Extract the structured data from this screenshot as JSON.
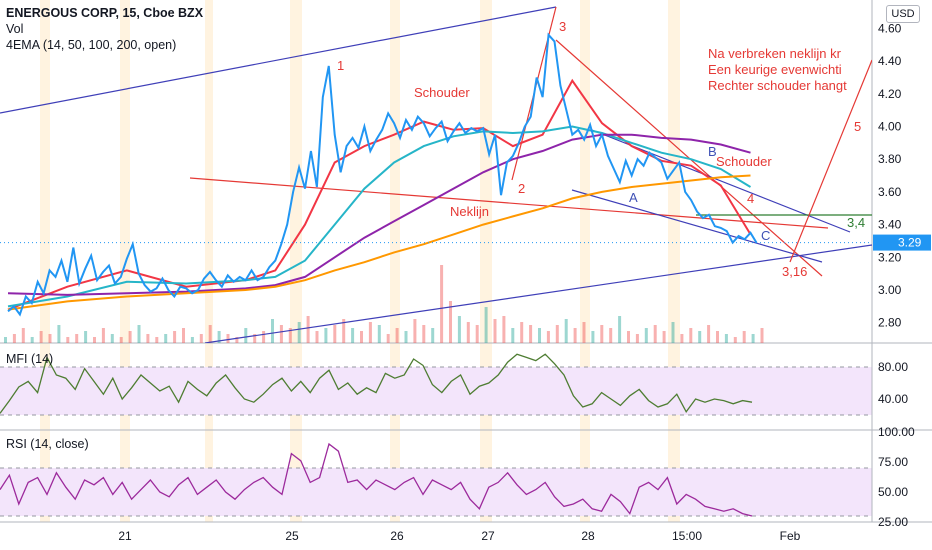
{
  "header": {
    "symbol_line": "ENERGOUS CORP, 15, Cboe BZX",
    "vol_label": "Vol",
    "ema_label": "4EMA (14, 50, 100, 200, open)",
    "currency_button": "USD"
  },
  "colors": {
    "price": "#2196f3",
    "ema14": "#f23645",
    "ema50": "#26b5c8",
    "ema100": "#8e24aa",
    "ema200": "#ff9800",
    "trendline_blue": "#3f3fb8",
    "annotation_red": "#e53935",
    "annotation_blue": "#3f51b5",
    "mfi_line": "#4e7d32",
    "rsi_line": "#9c2a9c",
    "band_fill": "#f3e5fb",
    "vol_up": "#26a69a",
    "vol_down": "#ef5350",
    "session_shade": "#fff3e0"
  },
  "annotations": {
    "labels": [
      "1",
      "2",
      "3",
      "4",
      "5",
      "A",
      "B",
      "C",
      "Schouder",
      "Schouder",
      "Neklijn",
      "3,4",
      "3,16"
    ],
    "note_lines": [
      "Na verbreken neklijn kr",
      "Een keurige evenwichti",
      "Rechter schouder hangt"
    ]
  },
  "chart_data": [
    {
      "type": "line",
      "panel": "price",
      "title": "ENERGOUS CORP, 15, Cboe BZX",
      "x_ticks": [
        "21",
        "25",
        "26",
        "27",
        "28",
        "15:00",
        "Feb"
      ],
      "y_ticks": [
        "2.80",
        "3.00",
        "3.20",
        "3.40",
        "3.60",
        "3.80",
        "4.00",
        "4.20",
        "4.40",
        "4.60"
      ],
      "ylim": [
        2.66,
        4.68
      ],
      "last_price_label": "3.29",
      "last_price": 3.29,
      "series": [
        {
          "name": "price",
          "x": [
            0,
            6,
            12,
            18,
            24,
            30,
            36,
            42,
            48,
            54,
            60,
            66,
            72,
            78,
            84,
            90,
            96,
            102,
            108,
            114,
            120,
            126,
            132,
            138,
            144,
            150,
            156,
            162,
            168,
            174,
            180,
            186,
            192,
            198,
            204,
            210,
            216,
            222,
            228,
            234,
            240,
            246,
            252,
            258,
            264,
            270,
            276,
            282,
            288,
            294,
            300,
            306,
            312,
            318,
            324,
            330,
            336,
            342,
            348,
            354,
            360,
            366,
            372,
            378,
            384,
            390,
            396,
            402,
            408,
            414,
            420,
            426,
            432,
            438,
            444,
            450,
            456,
            462,
            468,
            474,
            480,
            486,
            492,
            498,
            504,
            510,
            516,
            522,
            528,
            534,
            540,
            546,
            552,
            558,
            564,
            570,
            576,
            582,
            588,
            594,
            600,
            606,
            612,
            618,
            624,
            630,
            636,
            642,
            648,
            654,
            660,
            666,
            672,
            678,
            684,
            690,
            696,
            702,
            708,
            714,
            720,
            726,
            732,
            738,
            744,
            750,
            756
          ],
          "y": [
            2.87,
            2.9,
            2.85,
            2.96,
            2.92,
            3.05,
            2.98,
            3.12,
            3.08,
            3.18,
            3.05,
            3.26,
            3.04,
            3.13,
            3.21,
            3.06,
            3.11,
            3.15,
            3.04,
            3.08,
            3.19,
            3.28,
            3.1,
            3.03,
            2.99,
            3.01,
            3.07,
            3.0,
            2.96,
            3.02,
            3.01,
            2.98,
            3.0,
            3.07,
            3.11,
            3.06,
            3.02,
            3.09,
            3.05,
            3.08,
            3.06,
            3.12,
            3.06,
            3.08,
            3.14,
            3.18,
            3.28,
            3.4,
            3.6,
            3.75,
            3.62,
            3.85,
            3.63,
            4.18,
            4.37,
            3.95,
            3.72,
            3.88,
            3.93,
            3.87,
            4.0,
            3.85,
            3.92,
            3.98,
            4.08,
            4.02,
            3.93,
            4.04,
            3.98,
            4.06,
            4.02,
            3.94,
            3.99,
            4.03,
            3.91,
            3.97,
            4.02,
            3.96,
            3.99,
            3.97,
            3.99,
            3.83,
            3.95,
            3.58,
            3.78,
            3.82,
            3.9,
            4.0,
            4.06,
            4.3,
            4.18,
            4.56,
            4.52,
            4.25,
            4.1,
            3.95,
            3.98,
            3.92,
            4.01,
            3.88,
            3.95,
            3.82,
            3.74,
            3.66,
            3.79,
            3.7,
            3.8,
            3.76,
            3.84,
            3.81,
            3.78,
            3.68,
            3.73,
            3.78,
            3.6,
            3.55,
            3.48,
            3.44,
            3.46,
            3.39,
            3.38,
            3.36,
            3.29,
            3.33,
            3.31,
            3.35,
            3.29
          ]
        },
        {
          "name": "EMA 14",
          "x": [
            0,
            60,
            120,
            180,
            240,
            270,
            300,
            330,
            360,
            390,
            420,
            450,
            480,
            510,
            540,
            570,
            600,
            630,
            660,
            690,
            720,
            750
          ],
          "y": [
            2.88,
            3.02,
            3.12,
            3.02,
            3.06,
            3.12,
            3.4,
            3.78,
            3.88,
            3.95,
            4.03,
            3.98,
            3.99,
            3.88,
            3.95,
            4.28,
            4.02,
            3.88,
            3.79,
            3.76,
            3.64,
            3.34
          ]
        },
        {
          "name": "EMA 50",
          "x": [
            0,
            60,
            120,
            180,
            240,
            270,
            300,
            330,
            360,
            390,
            420,
            450,
            480,
            510,
            540,
            570,
            600,
            630,
            660,
            690,
            720,
            750
          ],
          "y": [
            2.9,
            2.96,
            3.05,
            3.04,
            3.06,
            3.08,
            3.18,
            3.4,
            3.62,
            3.78,
            3.88,
            3.94,
            3.97,
            3.96,
            3.97,
            4.0,
            3.96,
            3.9,
            3.84,
            3.8,
            3.74,
            3.63
          ]
        },
        {
          "name": "EMA 100",
          "x": [
            0,
            60,
            120,
            180,
            240,
            270,
            300,
            330,
            360,
            390,
            420,
            450,
            480,
            510,
            540,
            570,
            600,
            630,
            660,
            690,
            720,
            750
          ],
          "y": [
            2.98,
            2.97,
            2.98,
            2.99,
            3.01,
            3.03,
            3.08,
            3.2,
            3.32,
            3.42,
            3.52,
            3.62,
            3.72,
            3.8,
            3.85,
            3.92,
            3.95,
            3.95,
            3.93,
            3.92,
            3.89,
            3.84
          ]
        },
        {
          "name": "EMA 200",
          "x": [
            0,
            60,
            120,
            180,
            240,
            270,
            300,
            330,
            360,
            390,
            420,
            450,
            480,
            510,
            540,
            570,
            600,
            630,
            660,
            690,
            720,
            750
          ],
          "y": [
            2.88,
            2.93,
            2.96,
            2.98,
            3.0,
            3.02,
            3.06,
            3.12,
            3.17,
            3.23,
            3.28,
            3.34,
            3.4,
            3.45,
            3.5,
            3.56,
            3.6,
            3.63,
            3.65,
            3.67,
            3.69,
            3.7
          ]
        }
      ]
    },
    {
      "type": "bar",
      "panel": "volume",
      "series": [
        {
          "name": "Vol",
          "values": [
            2,
            3,
            5,
            2,
            4,
            3,
            6,
            2,
            3,
            4,
            2,
            5,
            3,
            2,
            4,
            6,
            3,
            2,
            3,
            4,
            5,
            2,
            3,
            6,
            4,
            3,
            2,
            5,
            3,
            4,
            8,
            6,
            5,
            7,
            9,
            4,
            5,
            6,
            8,
            5,
            4,
            7,
            6,
            3,
            5,
            4,
            8,
            6,
            5,
            26,
            14,
            9,
            7,
            6,
            12,
            8,
            9,
            5,
            7,
            6,
            5,
            4,
            6,
            8,
            5,
            7,
            4,
            6,
            5,
            9,
            4,
            3,
            5,
            6,
            4,
            7,
            3,
            5,
            4,
            6,
            4,
            3,
            2,
            4,
            3,
            5
          ]
        }
      ]
    },
    {
      "type": "line",
      "panel": "MFI (14)",
      "title": "MFI (14)",
      "y_ticks": [
        "40.00",
        "80.00"
      ],
      "bands": [
        20,
        80
      ],
      "series": [
        {
          "name": "MFI (14)",
          "values": [
            22,
            38,
            55,
            62,
            48,
            92,
            70,
            66,
            52,
            78,
            62,
            46,
            66,
            40,
            54,
            70,
            60,
            50,
            56,
            36,
            62,
            52,
            44,
            60,
            70,
            54,
            40,
            36,
            46,
            58,
            66,
            50,
            62,
            48,
            66,
            76,
            52,
            60,
            46,
            54,
            48,
            72,
            66,
            70,
            90,
            82,
            58,
            48,
            62,
            70,
            46,
            56,
            60,
            70,
            86,
            96,
            92,
            88,
            96,
            84,
            70,
            44,
            30,
            34,
            48,
            40,
            32,
            44,
            52,
            38,
            30,
            34,
            46,
            24,
            40,
            36,
            40,
            38,
            34,
            38,
            36
          ]
        }
      ]
    },
    {
      "type": "line",
      "panel": "RSI (14, close)",
      "title": "RSI (14, close)",
      "y_ticks": [
        "25.00",
        "50.00",
        "75.00",
        "100.00"
      ],
      "bands": [
        30,
        70
      ],
      "series": [
        {
          "name": "RSI (14, close)",
          "values": [
            52,
            64,
            40,
            58,
            62,
            48,
            66,
            54,
            44,
            60,
            56,
            62,
            48,
            58,
            44,
            52,
            60,
            50,
            46,
            56,
            62,
            48,
            54,
            60,
            50,
            44,
            52,
            58,
            62,
            54,
            48,
            82,
            76,
            58,
            62,
            90,
            84,
            58,
            60,
            52,
            60,
            56,
            52,
            58,
            62,
            48,
            60,
            56,
            52,
            58,
            44,
            36,
            54,
            58,
            66,
            56,
            48,
            52,
            58,
            46,
            38,
            40,
            44,
            36,
            34,
            48,
            42,
            32,
            54,
            58,
            52,
            62,
            40,
            48,
            44,
            38,
            36,
            34,
            36,
            32,
            30
          ]
        }
      ]
    }
  ]
}
